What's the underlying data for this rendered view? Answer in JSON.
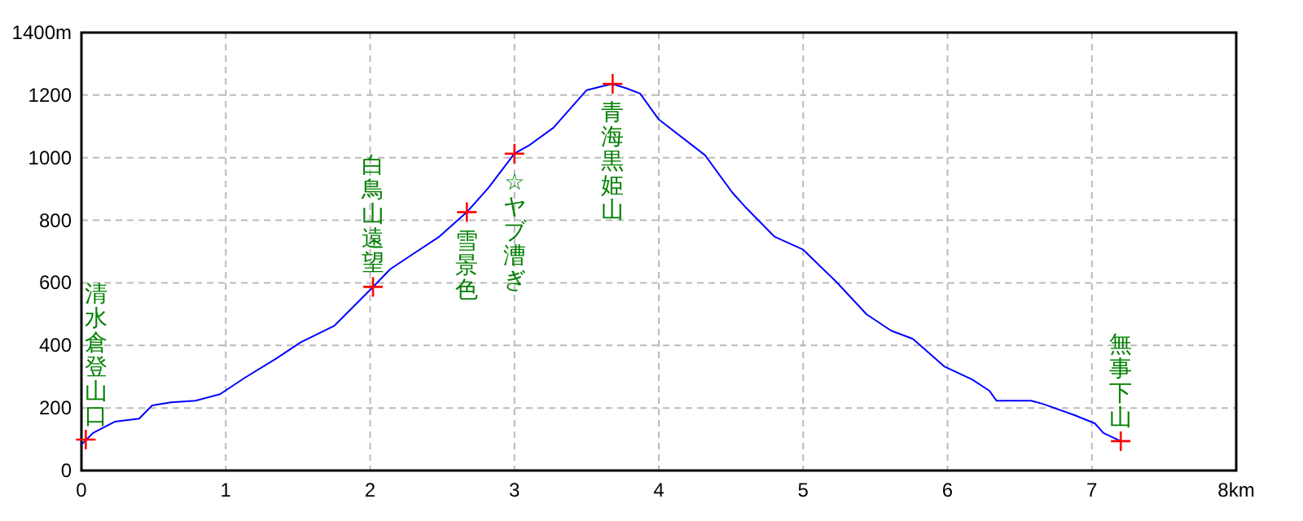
{
  "chart_data": {
    "type": "line",
    "xlim": [
      0,
      8
    ],
    "ylim": [
      0,
      1400
    ],
    "xticks": [
      0,
      1,
      2,
      3,
      4,
      5,
      6,
      7,
      {
        "value": 8,
        "label": "8km"
      }
    ],
    "yticks": [
      0,
      200,
      400,
      600,
      800,
      1000,
      1200,
      {
        "value": 1400,
        "label": "1400m"
      }
    ],
    "grid": true,
    "series": [
      {
        "type": "line",
        "color": "#0000ff",
        "marker": "none",
        "x": [
          0,
          0.08,
          0.23,
          0.4,
          0.49,
          0.62,
          0.79,
          0.96,
          1.13,
          1.35,
          1.52,
          1.75,
          2.02,
          2.14,
          2.31,
          2.48,
          2.67,
          2.82,
          3.0,
          3.1,
          3.27,
          3.5,
          3.63,
          3.68,
          3.78,
          3.87,
          4.0,
          4.32,
          4.51,
          4.6,
          4.8,
          5.0,
          5.23,
          5.44,
          5.61,
          5.76,
          5.98,
          6.17,
          6.29,
          6.34,
          6.58,
          6.66,
          6.88,
          7.02,
          7.08,
          7.2
        ],
        "values": [
          83,
          120,
          156,
          166,
          208,
          218,
          223,
          244,
          296,
          358,
          410,
          462,
          587,
          644,
          696,
          748,
          826,
          904,
          1013,
          1039,
          1096,
          1216,
          1231,
          1236,
          1221,
          1205,
          1122,
          1008,
          888,
          842,
          748,
          706,
          603,
          499,
          447,
          421,
          332,
          291,
          255,
          223,
          223,
          213,
          177,
          151,
          120,
          94
        ]
      },
      {
        "type": "scatter",
        "color": "#ff0000",
        "marker": "cross",
        "x": [
          0.03,
          2.02,
          2.67,
          3.0,
          3.68,
          7.2
        ],
        "values": [
          99,
          587,
          826,
          1013,
          1236,
          94
        ]
      }
    ],
    "annotations": [
      {
        "text": "清水倉登山口",
        "x": 0.03,
        "y": 99
      },
      {
        "text": "白鳥山遠望",
        "x": 2.02,
        "y": 587
      },
      {
        "text": "雪景色",
        "x": 2.67,
        "y": 826
      },
      {
        "text": "☆ヤブ漕ぎ",
        "x": 3.0,
        "y": 1013
      },
      {
        "text": "青海黒姫山",
        "x": 3.68,
        "y": 1236
      },
      {
        "text": "無事下山",
        "x": 7.2,
        "y": 94
      }
    ]
  }
}
